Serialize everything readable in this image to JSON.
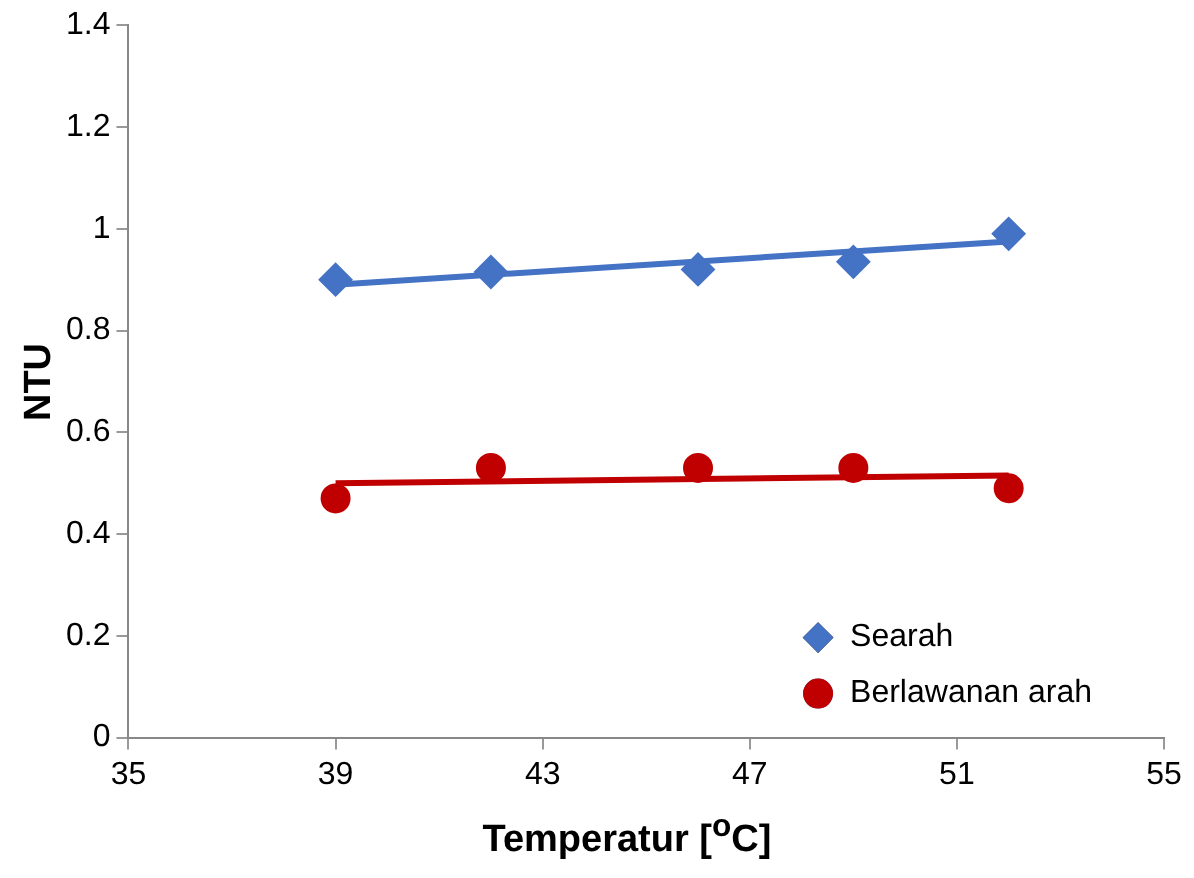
{
  "chart_data": {
    "type": "scatter",
    "xlabel": "Temperatur [$^{o}$C]",
    "ylabel": "NTU",
    "xlim": [
      35,
      55
    ],
    "xticks": [
      35,
      39,
      43,
      47,
      51,
      55
    ],
    "ylim": [
      0,
      1.4
    ],
    "yticks": [
      0,
      0.2,
      0.4,
      0.6,
      0.8,
      1,
      1.2,
      1.4
    ],
    "grid": false,
    "legend": "bottom right",
    "series": [
      {
        "name": "Searah",
        "marker": "diamond",
        "color": "#4472c4",
        "x": [
          39,
          42,
          46,
          49,
          52
        ],
        "values": [
          0.9,
          0.915,
          0.92,
          0.935,
          0.99
        ]
      },
      {
        "name": "Berlawanan arah",
        "marker": "circle",
        "color": "#c00000",
        "x": [
          39,
          42,
          46,
          49,
          52
        ],
        "values": [
          0.47,
          0.53,
          0.53,
          0.53,
          0.49
        ]
      },
      {
        "type": "line",
        "marker": "none",
        "color": "#4472c4",
        "x": [
          39,
          52
        ],
        "values": [
          0.89,
          0.975
        ]
      },
      {
        "type": "line",
        "marker": "none",
        "color": "#c00000",
        "x": [
          39,
          52
        ],
        "values": [
          0.5,
          0.515
        ]
      }
    ]
  }
}
